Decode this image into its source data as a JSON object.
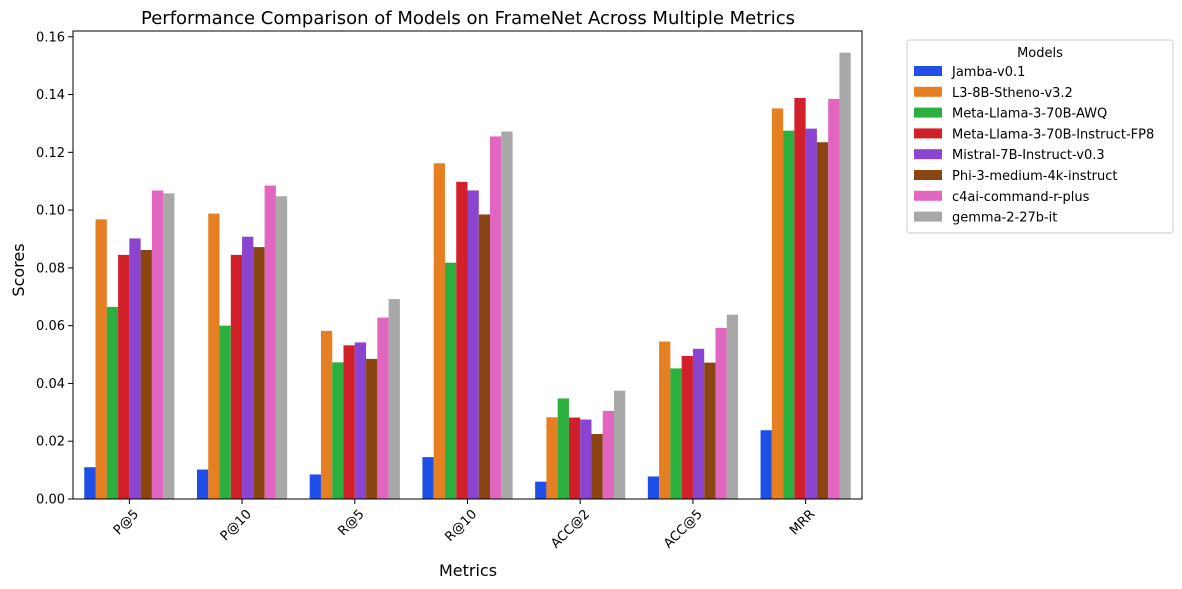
{
  "chart_data": {
    "type": "bar",
    "title": "Performance Comparison of Models on FrameNet Across Multiple Metrics",
    "xlabel": "Metrics",
    "ylabel": "Scores",
    "ylim": [
      0,
      0.162
    ],
    "yticks": [
      "0.00",
      "0.02",
      "0.04",
      "0.06",
      "0.08",
      "0.10",
      "0.12",
      "0.14",
      "0.16"
    ],
    "categories": [
      "P@5",
      "P@10",
      "R@5",
      "R@10",
      "ACC@2",
      "ACC@5",
      "MRR"
    ],
    "legend": {
      "title": "Models",
      "placement": "outside-right-top"
    },
    "grid": false,
    "series": [
      {
        "name": "Jamba-v0.1",
        "color": "#1f4fe6",
        "values": [
          0.011,
          0.0102,
          0.0085,
          0.0145,
          0.006,
          0.0078,
          0.0238
        ]
      },
      {
        "name": "L3-8B-Stheno-v3.2",
        "color": "#e67e22",
        "values": [
          0.0968,
          0.0988,
          0.0582,
          0.1162,
          0.0283,
          0.0545,
          0.1352
        ]
      },
      {
        "name": "Meta-Llama-3-70B-AWQ",
        "color": "#2bb03f",
        "values": [
          0.0665,
          0.06,
          0.0473,
          0.0818,
          0.0348,
          0.0452,
          0.1275
        ]
      },
      {
        "name": "Meta-Llama-3-70B-Instruct-FP8",
        "color": "#d1202a",
        "values": [
          0.0845,
          0.0845,
          0.0532,
          0.1098,
          0.0282,
          0.0495,
          0.1388
        ]
      },
      {
        "name": "Mistral-7B-Instruct-v0.3",
        "color": "#8a44cf",
        "values": [
          0.0902,
          0.0908,
          0.0542,
          0.1068,
          0.0275,
          0.052,
          0.1282
        ]
      },
      {
        "name": "Phi-3-medium-4k-instruct",
        "color": "#8b4513",
        "values": [
          0.0862,
          0.0872,
          0.0485,
          0.0985,
          0.0225,
          0.0472,
          0.1235
        ]
      },
      {
        "name": "c4ai-command-r-plus",
        "color": "#e066bf",
        "values": [
          0.1068,
          0.1085,
          0.0628,
          0.1255,
          0.0305,
          0.0592,
          0.1385
        ]
      },
      {
        "name": "gemma-2-27b-it",
        "color": "#a8a8a8",
        "values": [
          0.1058,
          0.1048,
          0.0692,
          0.1272,
          0.0375,
          0.0638,
          0.1545
        ]
      }
    ]
  }
}
